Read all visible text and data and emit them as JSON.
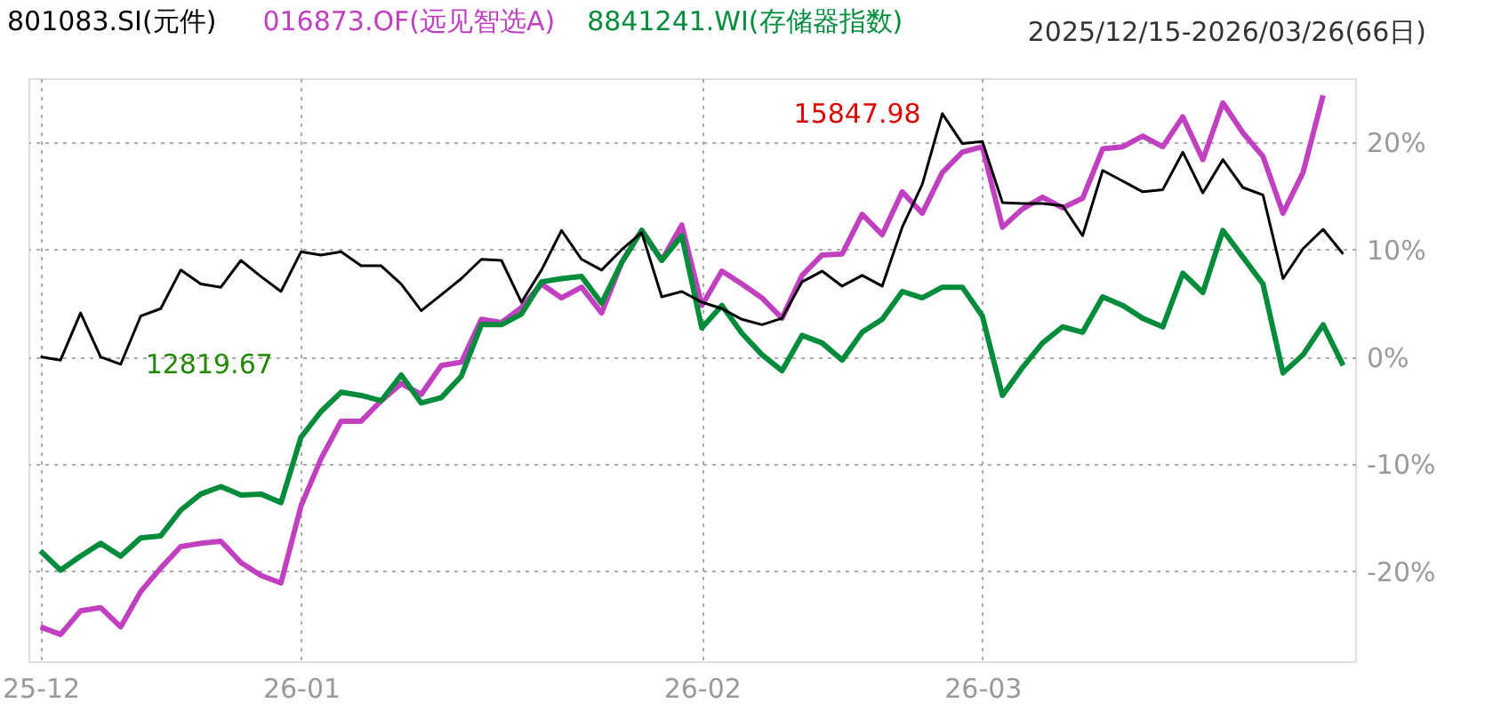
{
  "chart_data": {
    "type": "line",
    "categories": [
      "25-12",
      null,
      null,
      null,
      null,
      null,
      null,
      null,
      null,
      null,
      null,
      null,
      null,
      "26-01",
      null,
      null,
      null,
      null,
      null,
      null,
      null,
      null,
      null,
      null,
      null,
      null,
      null,
      null,
      null,
      null,
      null,
      null,
      null,
      "26-02",
      null,
      null,
      null,
      null,
      null,
      null,
      null,
      null,
      null,
      null,
      null,
      null,
      null,
      "26-03",
      null,
      null,
      null,
      null,
      null,
      null,
      null,
      null,
      null,
      null,
      null,
      null,
      null,
      null,
      null,
      null,
      null,
      null
    ],
    "series": [
      {
        "name": "801083.SI(元件)",
        "color": "#000000",
        "values": [
          0.0,
          -0.3,
          4.1,
          0.0,
          -0.7,
          3.8,
          4.5,
          8.1,
          6.8,
          6.5,
          9.0,
          7.5,
          6.1,
          9.8,
          9.5,
          9.8,
          8.5,
          8.5,
          6.8,
          4.3,
          5.8,
          7.3,
          9.1,
          9.0,
          5.1,
          8.1,
          11.8,
          9.1,
          8.1,
          10.0,
          11.6,
          5.6,
          6.1,
          5.1,
          4.5,
          3.5,
          3.0,
          3.6,
          7.0,
          8.0,
          6.6,
          7.6,
          6.6,
          12.1,
          16.1,
          22.7,
          19.9,
          20.1,
          14.4,
          14.3,
          14.3,
          14.1,
          11.3,
          17.4,
          16.4,
          15.4,
          15.6,
          19.1,
          15.3,
          18.4,
          15.8,
          15.1,
          7.3,
          10.1,
          11.9,
          9.6
        ]
      },
      {
        "name": "016873.OF(远见智选A)",
        "color": "#c040c0",
        "values": [
          -25.2,
          -25.9,
          -23.7,
          -23.4,
          -25.2,
          -21.9,
          -19.7,
          -17.7,
          -17.4,
          -17.2,
          -19.2,
          -20.4,
          -21.1,
          -13.9,
          -9.5,
          -6.0,
          -6.0,
          -4.1,
          -2.5,
          -3.5,
          -0.8,
          -0.5,
          3.5,
          3.2,
          4.6,
          6.8,
          5.5,
          6.5,
          4.1,
          8.8,
          11.8,
          9.0,
          12.3,
          4.8,
          8.0,
          6.8,
          5.5,
          3.6,
          7.6,
          9.5,
          9.6,
          13.3,
          11.4,
          15.4,
          13.4,
          17.2,
          19.1,
          19.6,
          12.1,
          13.8,
          14.9,
          13.9,
          14.8,
          19.4,
          19.6,
          20.6,
          19.6,
          22.4,
          18.4,
          23.7,
          20.9,
          18.7,
          13.4,
          17.2,
          24.4,
          null
        ]
      },
      {
        "name": "8841241.WI(存储器指数)",
        "color": "#008c3a",
        "values": [
          -18.1,
          -19.9,
          -18.6,
          -17.4,
          -18.6,
          -16.9,
          -16.7,
          -14.3,
          -12.8,
          -12.1,
          -12.9,
          -12.8,
          -13.6,
          -7.5,
          -5.1,
          -3.3,
          -3.6,
          -4.1,
          -1.7,
          -4.3,
          -3.8,
          -1.8,
          3.0,
          3.0,
          4.0,
          7.0,
          7.3,
          7.5,
          5.0,
          8.8,
          11.8,
          9.0,
          11.3,
          2.7,
          4.8,
          2.2,
          0.2,
          -1.3,
          2.0,
          1.3,
          -0.3,
          2.3,
          3.5,
          6.1,
          5.5,
          6.5,
          6.5,
          3.8,
          -3.6,
          -1.0,
          1.3,
          2.8,
          2.3,
          5.6,
          4.8,
          3.6,
          2.8,
          7.8,
          6.0,
          11.8,
          9.3,
          6.8,
          -1.5,
          0.2,
          3.0,
          -0.8
        ]
      }
    ],
    "ylim": [
      -28.4,
      26
    ],
    "yticks": [
      {
        "value": -20,
        "label": "-20%"
      },
      {
        "value": -10,
        "label": "-10%"
      },
      {
        "value": 0,
        "label": "0%"
      },
      {
        "value": 10,
        "label": "10%"
      },
      {
        "value": 20,
        "label": "20%"
      }
    ],
    "grid": true,
    "legend": "top",
    "annotations": [
      "15847.98",
      "12819.67",
      "2025/12/15-2026/03/26(66日)"
    ]
  }
}
